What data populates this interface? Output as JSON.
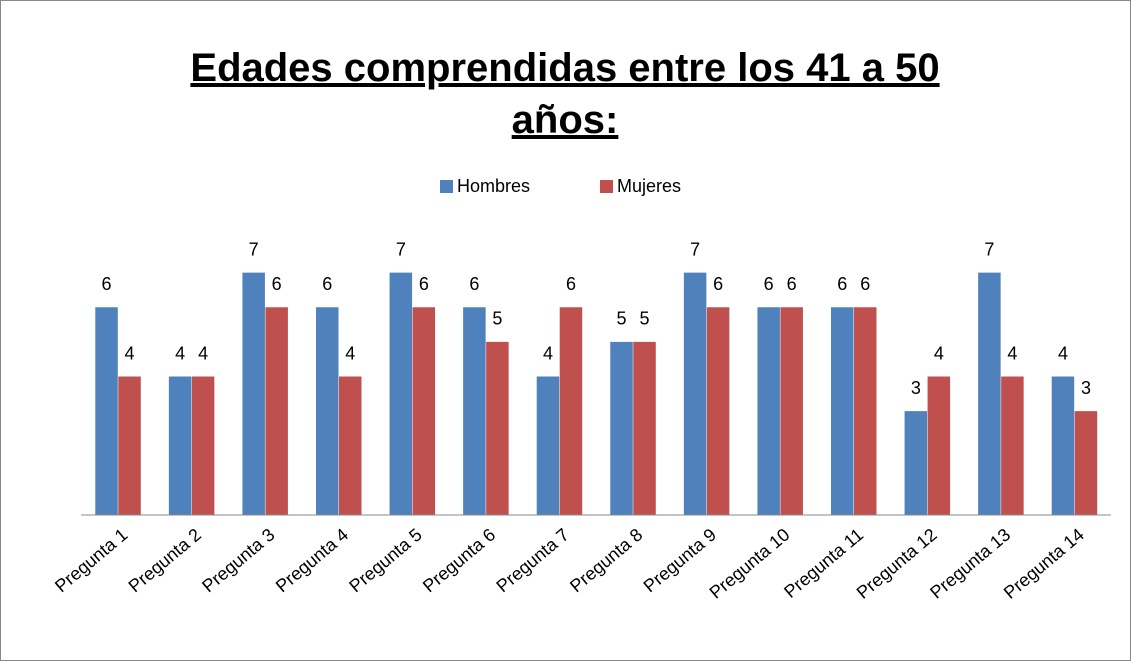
{
  "chart_data": {
    "type": "bar",
    "title": "Edades comprendidas entre los 41 a 50 años:",
    "categories": [
      "Pregunta 1",
      "Pregunta 2",
      "Pregunta 3",
      "Pregunta 4",
      "Pregunta 5",
      "Pregunta 6",
      "Pregunta 7",
      "Pregunta 8",
      "Pregunta 9",
      "Pregunta 10",
      "Pregunta 11",
      "Pregunta 12",
      "Pregunta 13",
      "Pregunta 14"
    ],
    "series": [
      {
        "name": "Hombres",
        "color": "#4f81bd",
        "values": [
          6,
          4,
          7,
          6,
          7,
          6,
          4,
          5,
          7,
          6,
          6,
          3,
          7,
          4
        ]
      },
      {
        "name": "Mujeres",
        "color": "#c0504d",
        "values": [
          4,
          4,
          6,
          4,
          6,
          5,
          6,
          5,
          6,
          6,
          6,
          4,
          4,
          3
        ]
      }
    ],
    "ylim": [
      0,
      8
    ],
    "legend": "top"
  }
}
